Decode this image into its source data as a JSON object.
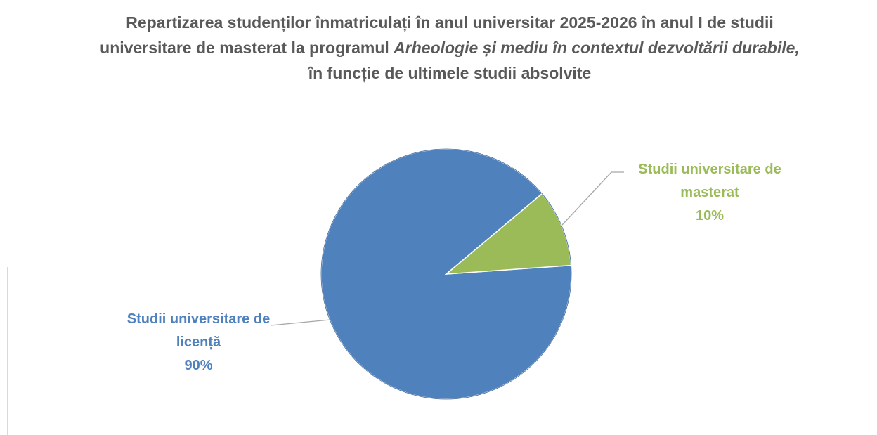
{
  "chart_data": {
    "type": "pie",
    "title": [
      "Repartizarea studenților înmatriculați în anul universitar 2025-2026 în anul I de studii universitare de masterat la programul ",
      "Arheologie și mediu în contextul dezvoltării durabile,",
      "  în funcție de ultimele studii absolvite"
    ],
    "title_italic": [
      false,
      true,
      false
    ],
    "categories": [
      "Studii universitare de licență",
      "Studii universitare de masterat"
    ],
    "values": [
      90,
      10
    ],
    "value_labels": [
      "90%",
      "10%"
    ],
    "colors": [
      "#4f81bd",
      "#9bbb59"
    ]
  }
}
